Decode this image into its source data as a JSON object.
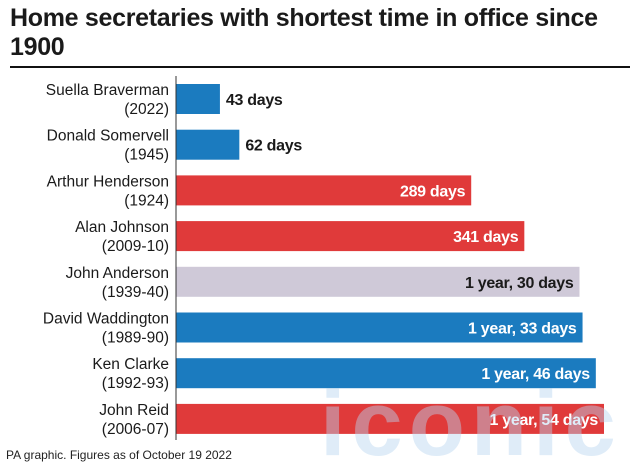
{
  "title": "Home secretaries with shortest time in office since 1900",
  "source": "PA graphic. Figures as of October 19 2022",
  "watermark": "iconic",
  "colors": {
    "conservative": "#1b7bbf",
    "labour": "#e03a3a",
    "independent": "#cfc9d8",
    "text_dark": "#1a1a1a",
    "text_light": "#ffffff"
  },
  "chart_data": {
    "type": "bar",
    "orientation": "horizontal",
    "title": "Home secretaries with shortest time in office since 1900",
    "unit": "days",
    "grid": false,
    "bars": [
      {
        "name": "Suella Braverman",
        "period": "(2022)",
        "value": 43,
        "label": "43 days",
        "color": "#1b7bbf"
      },
      {
        "name": "Donald Somervell",
        "period": "(1945)",
        "value": 62,
        "label": "62 days",
        "color": "#1b7bbf"
      },
      {
        "name": "Arthur Henderson",
        "period": "(1924)",
        "value": 289,
        "label": "289 days",
        "color": "#e03a3a"
      },
      {
        "name": "Alan Johnson",
        "period": "(2009-10)",
        "value": 341,
        "label": "341 days",
        "color": "#e03a3a"
      },
      {
        "name": "John Anderson",
        "period": "(1939-40)",
        "value": 395,
        "label": "1 year, 30 days",
        "color": "#cfc9d8"
      },
      {
        "name": "David Waddington",
        "period": "(1989-90)",
        "value": 398,
        "label": "1 year, 33 days",
        "color": "#1b7bbf"
      },
      {
        "name": "Ken Clarke",
        "period": "(1992-93)",
        "value": 411,
        "label": "1 year, 46 days",
        "color": "#1b7bbf"
      },
      {
        "name": "John Reid",
        "period": "(2006-07)",
        "value": 419,
        "label": "1 year, 54 days",
        "color": "#e03a3a"
      }
    ]
  }
}
